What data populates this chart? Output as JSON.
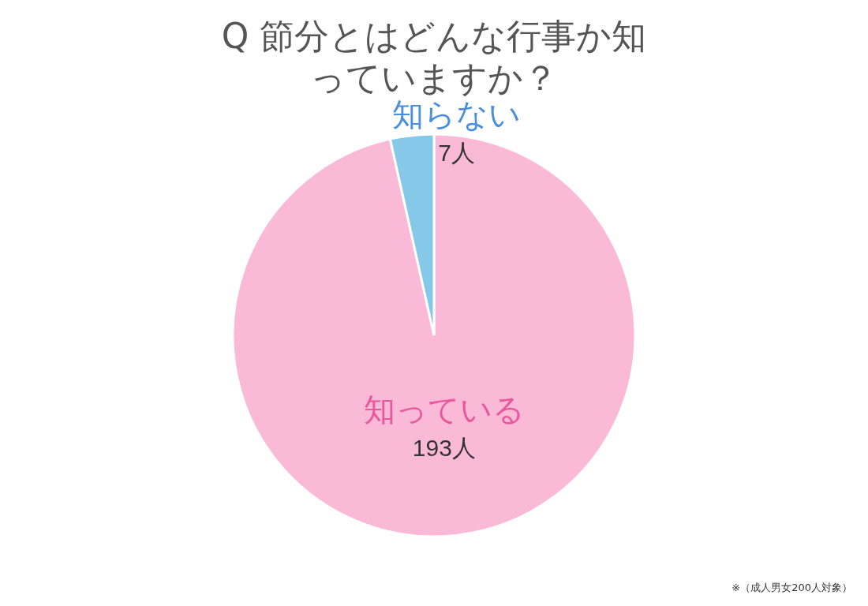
{
  "chart_data": {
    "type": "pie",
    "title": "Q 節分とはどんな行事か知っていますか？",
    "categories": [
      "知っている",
      "知らない"
    ],
    "values": [
      193,
      7
    ],
    "colors": [
      "#fbb9d8",
      "#85c8e8"
    ],
    "value_labels": [
      "193人",
      "7人"
    ],
    "annotations": [
      "※（成人男女200人対象）"
    ]
  }
}
